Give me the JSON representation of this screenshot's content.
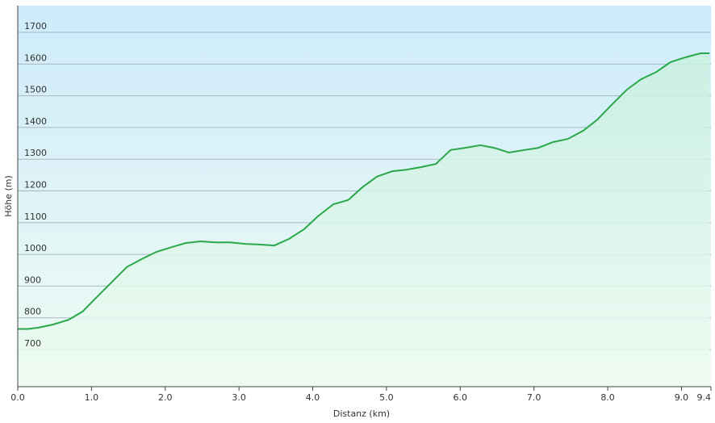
{
  "chart_data": {
    "type": "area",
    "xlabel": "Distanz  (km)",
    "ylabel": "Höhe (m)",
    "x": [
      0,
      0.14,
      0.28,
      0.48,
      0.69,
      0.88,
      1.07,
      1.29,
      1.48,
      1.68,
      1.88,
      2.09,
      2.28,
      2.48,
      2.69,
      2.88,
      3.08,
      3.27,
      3.48,
      3.68,
      3.88,
      4.07,
      4.28,
      4.48,
      4.67,
      4.87,
      5.08,
      5.27,
      5.47,
      5.67,
      5.87,
      6.07,
      6.27,
      6.46,
      6.66,
      6.87,
      7.06,
      7.26,
      7.46,
      7.67,
      7.86,
      8.06,
      8.26,
      8.45,
      8.66,
      8.85,
      9.05,
      9.26,
      9.38
    ],
    "series": [
      {
        "color": "#2aa84a",
        "values": [
          765,
          765,
          769,
          779,
          794,
          820,
          865,
          916,
          960,
          985,
          1008,
          1023,
          1036,
          1041,
          1038,
          1038,
          1033,
          1031,
          1028,
          1049,
          1079,
          1120,
          1158,
          1171,
          1211,
          1245,
          1262,
          1267,
          1275,
          1285,
          1329,
          1336,
          1344,
          1336,
          1321,
          1329,
          1336,
          1354,
          1364,
          1390,
          1425,
          1473,
          1519,
          1552,
          1575,
          1606,
          1621,
          1634,
          1634
        ]
      }
    ],
    "xlim": [
      0,
      9.4
    ],
    "xticks": [
      {
        "value": 0,
        "label": "0.0"
      },
      {
        "value": 1,
        "label": "1.0"
      },
      {
        "value": 2,
        "label": "2.0"
      },
      {
        "value": 3,
        "label": "3.0"
      },
      {
        "value": 4,
        "label": "4.0"
      },
      {
        "value": 5,
        "label": "5.0"
      },
      {
        "value": 6,
        "label": "6.0"
      },
      {
        "value": 7,
        "label": "7.0"
      },
      {
        "value": 8,
        "label": "8.0"
      },
      {
        "value": 9,
        "label": "9.0"
      },
      {
        "value": 9.4,
        "label": "9.4"
      }
    ],
    "ylim": [
      583,
      1784
    ],
    "yticks": [
      700,
      800,
      900,
      1000,
      1100,
      1200,
      1300,
      1400,
      1500,
      1600,
      1700
    ],
    "grid": true
  }
}
